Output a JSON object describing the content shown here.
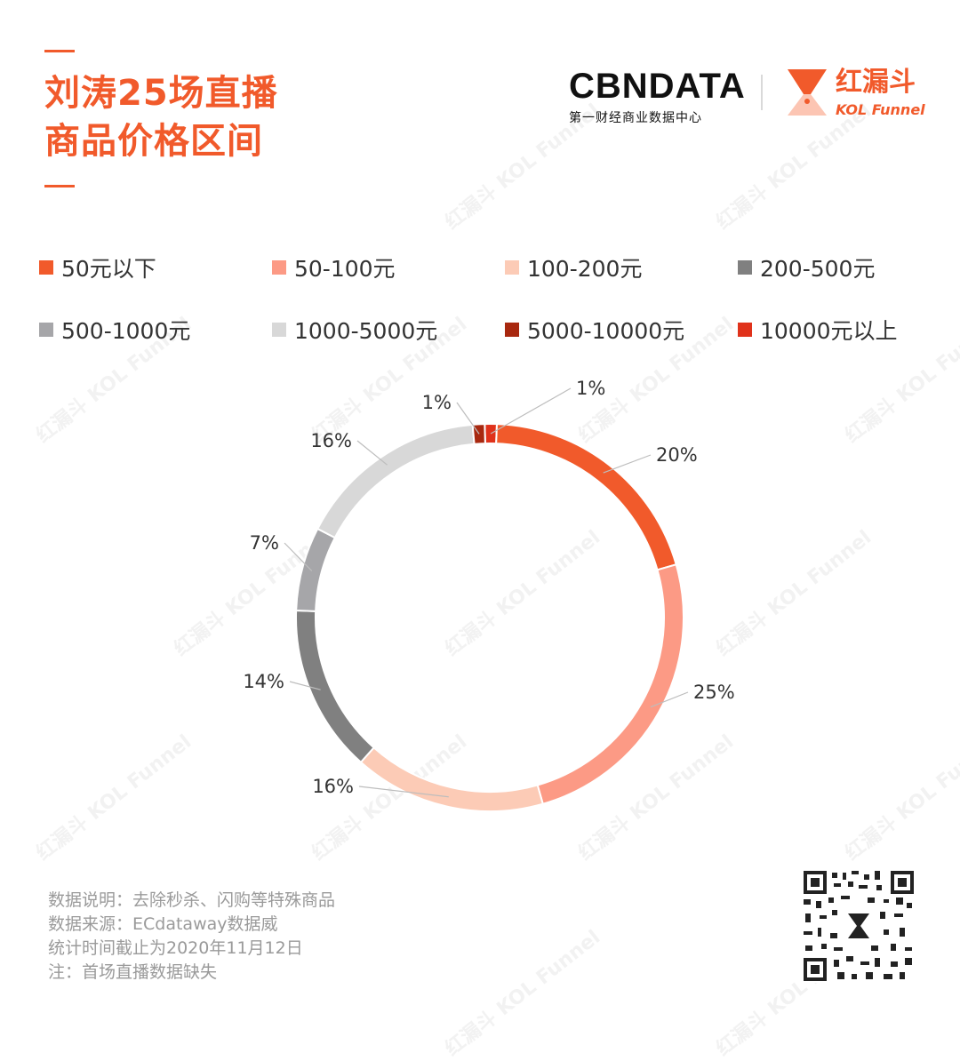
{
  "header": {
    "title_line1": "刘涛25场直播",
    "title_line2": "商品价格区间"
  },
  "logos": {
    "cbn_word": "CBNDATA",
    "cbn_sub": "第一财经商业数据中心",
    "funnel_name": "红漏斗",
    "funnel_en": "KOL Funnel"
  },
  "watermark": "红漏斗 KOL Funnel",
  "chart_data": {
    "type": "pie",
    "donut": true,
    "legend_position": "top",
    "categories": [
      "50元以下",
      "50-100元",
      "100-200元",
      "200-500元",
      "500-1000元",
      "1000-5000元",
      "5000-10000元",
      "10000元以上"
    ],
    "values": [
      20,
      25,
      16,
      14,
      7,
      16,
      1,
      1
    ],
    "value_labels": [
      "20%",
      "25%",
      "16%",
      "14%",
      "7%",
      "16%",
      "1%",
      "1%"
    ],
    "colors": [
      "#f15a2b",
      "#fc9a85",
      "#fccbb6",
      "#808080",
      "#a6a6a9",
      "#d8d8d8",
      "#a8280f",
      "#e0321b"
    ]
  },
  "notes": {
    "line1": "数据说明：去除秒杀、闪购等特殊商品",
    "line2": "数据来源：ECdataway数据威",
    "line3": "统计时间截止为2020年11月12日",
    "line4": "注：首场直播数据缺失"
  },
  "qr_icon": "qr-code-icon"
}
